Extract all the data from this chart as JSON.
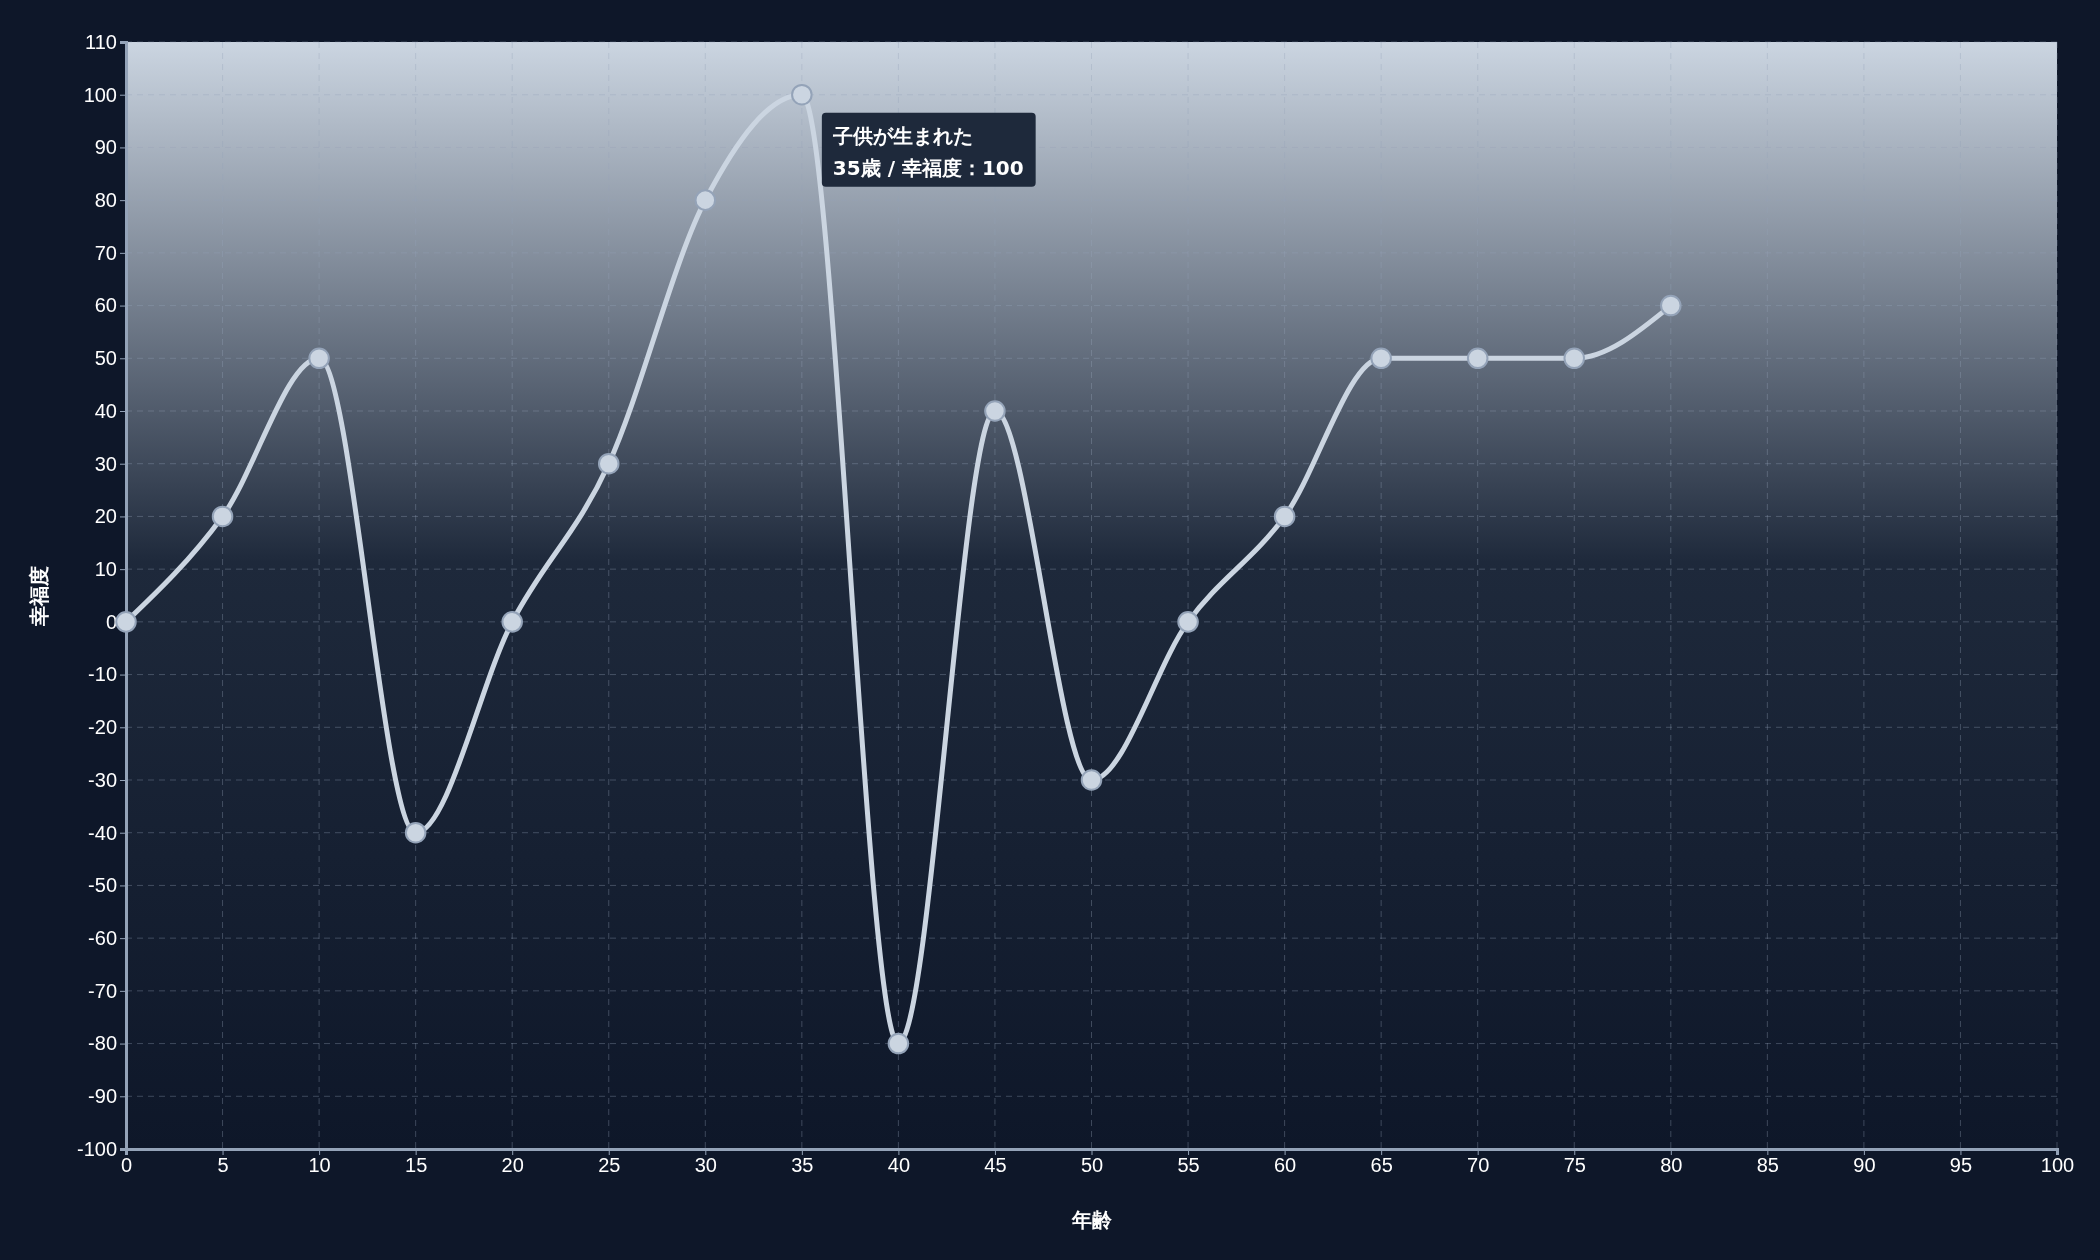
{
  "chart_data": {
    "type": "line",
    "xlabel": "年齢",
    "ylabel": "幸福度",
    "x": [
      0,
      5,
      10,
      15,
      20,
      25,
      30,
      35,
      40,
      45,
      50,
      55,
      60,
      65,
      70,
      75,
      80
    ],
    "series": [
      {
        "color": "#cbd5e1",
        "values": [
          0,
          20,
          50,
          -40,
          0,
          30,
          80,
          100,
          -80,
          40,
          -30,
          0,
          20,
          50,
          50,
          50,
          60
        ]
      }
    ],
    "xlim": [
      0,
      100
    ],
    "xticks": [
      0,
      5,
      10,
      15,
      20,
      25,
      30,
      35,
      40,
      45,
      50,
      55,
      60,
      65,
      70,
      75,
      80,
      85,
      90,
      95,
      100
    ],
    "ylim": [
      -100,
      110
    ],
    "yticks": [
      -100,
      -90,
      -80,
      -70,
      -60,
      -50,
      -40,
      -30,
      -20,
      -10,
      0,
      10,
      20,
      30,
      40,
      50,
      60,
      70,
      80,
      90,
      100,
      110
    ],
    "grid": true,
    "marker": "circle",
    "line_style": "solid",
    "annotations": [
      {
        "text": "子供が生まれた\n35歳 / 幸福度：100",
        "x": 35,
        "y": 100
      }
    ]
  }
}
